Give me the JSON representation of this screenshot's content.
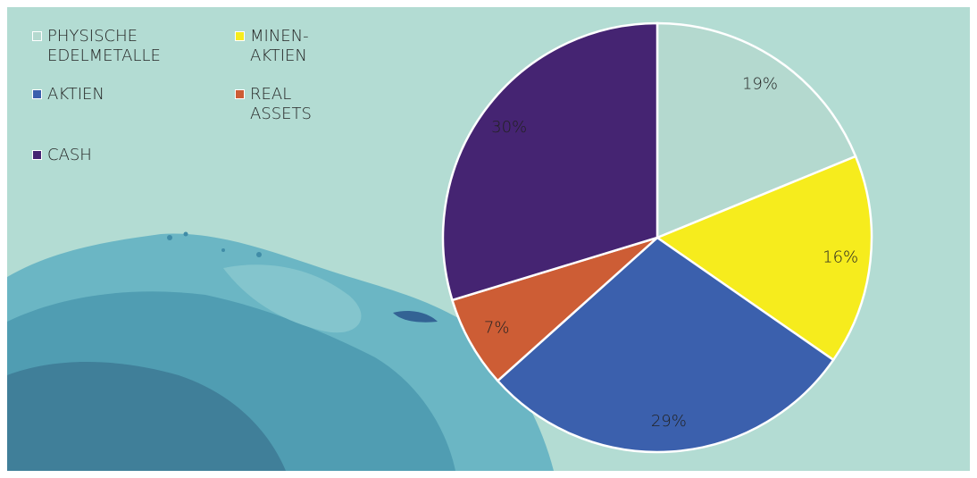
{
  "chart_data": {
    "type": "pie",
    "categories": [
      "PHYSISCHE EDELMETALLE",
      "MINEN-AKTIEN",
      "AKTIEN",
      "REAL ASSETS",
      "CASH"
    ],
    "values": [
      19,
      16,
      29,
      7,
      30
    ],
    "value_labels": [
      "19%",
      "16%",
      "29%",
      "7%",
      "30%"
    ],
    "colors": [
      "#b4d9cf",
      "#f6ec1d",
      "#3b60ad",
      "#cd5d35",
      "#452472"
    ],
    "legend": "top-left"
  }
}
